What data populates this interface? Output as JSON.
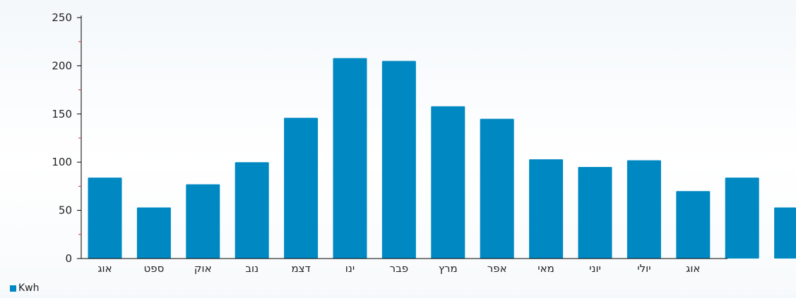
{
  "chart_data": {
    "type": "bar",
    "categories": [
      "אוג",
      "ספט",
      "אוק",
      "נוב",
      "דצמ",
      "ינו",
      "פבר",
      "מרץ",
      "אפר",
      "מאי",
      "יוני",
      "יולי",
      "אוג",
      "",
      ""
    ],
    "series": [
      {
        "name": "Kwh",
        "values": [
          84,
          53,
          77,
          100,
          146,
          208,
          205,
          158,
          145,
          103,
          95,
          102,
          70,
          84,
          53
        ]
      }
    ],
    "yticks": [
      0,
      50,
      100,
      150,
      200,
      250
    ],
    "ylim": [
      0,
      250
    ],
    "grid": false,
    "legend_position": "bottom-left",
    "colors": {
      "bar": "#0088c2",
      "axis": "#000000",
      "minor_tick": "#e03030"
    }
  }
}
